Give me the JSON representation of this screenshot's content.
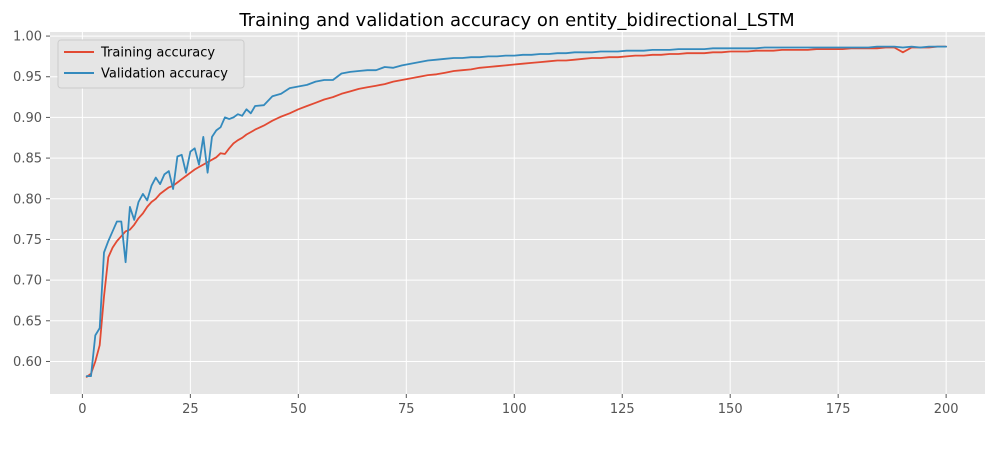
{
  "chart_data": {
    "type": "line",
    "title": "Training and validation accuracy on entity_bidirectional_LSTM",
    "xlabel": "",
    "ylabel": "",
    "xlim": [
      -7.5,
      209
    ],
    "ylim": [
      0.56,
      1.005
    ],
    "xticks": [
      0,
      25,
      50,
      75,
      100,
      125,
      150,
      175,
      200
    ],
    "yticks": [
      0.6,
      0.65,
      0.7,
      0.75,
      0.8,
      0.85,
      0.9,
      0.95,
      1.0
    ],
    "xtick_labels": [
      "0",
      "25",
      "50",
      "75",
      "100",
      "125",
      "150",
      "175",
      "200"
    ],
    "ytick_labels": [
      "0.60",
      "0.65",
      "0.70",
      "0.75",
      "0.80",
      "0.85",
      "0.90",
      "0.95",
      "1.00"
    ],
    "grid": true,
    "legend_position": "top-left",
    "series": [
      {
        "name": "Training accuracy",
        "color": "#e24a33",
        "x": [
          1,
          2,
          3,
          4,
          5,
          6,
          7,
          8,
          9,
          10,
          11,
          12,
          13,
          14,
          15,
          16,
          17,
          18,
          19,
          20,
          21,
          22,
          23,
          24,
          25,
          26,
          27,
          28,
          29,
          30,
          31,
          32,
          33,
          34,
          35,
          36,
          37,
          38,
          39,
          40,
          42,
          44,
          46,
          48,
          50,
          52,
          54,
          56,
          58,
          60,
          62,
          64,
          66,
          68,
          70,
          72,
          74,
          76,
          78,
          80,
          82,
          84,
          86,
          88,
          90,
          92,
          94,
          96,
          98,
          100,
          102,
          104,
          106,
          108,
          110,
          112,
          114,
          116,
          118,
          120,
          122,
          124,
          126,
          128,
          130,
          132,
          134,
          136,
          138,
          140,
          142,
          144,
          146,
          148,
          150,
          152,
          154,
          156,
          158,
          160,
          162,
          164,
          166,
          168,
          170,
          172,
          174,
          176,
          178,
          180,
          182,
          184,
          186,
          188,
          190,
          192,
          194,
          196,
          198,
          200
        ],
        "values": [
          0.581,
          0.585,
          0.6,
          0.62,
          0.68,
          0.728,
          0.74,
          0.748,
          0.754,
          0.76,
          0.762,
          0.768,
          0.776,
          0.782,
          0.79,
          0.796,
          0.8,
          0.806,
          0.81,
          0.814,
          0.816,
          0.82,
          0.824,
          0.828,
          0.832,
          0.836,
          0.839,
          0.842,
          0.845,
          0.848,
          0.851,
          0.856,
          0.855,
          0.862,
          0.868,
          0.872,
          0.875,
          0.879,
          0.882,
          0.885,
          0.89,
          0.896,
          0.901,
          0.905,
          0.91,
          0.914,
          0.918,
          0.922,
          0.925,
          0.929,
          0.932,
          0.935,
          0.937,
          0.939,
          0.941,
          0.944,
          0.946,
          0.948,
          0.95,
          0.952,
          0.953,
          0.955,
          0.957,
          0.958,
          0.959,
          0.961,
          0.962,
          0.963,
          0.964,
          0.965,
          0.966,
          0.967,
          0.968,
          0.969,
          0.97,
          0.97,
          0.971,
          0.972,
          0.973,
          0.973,
          0.974,
          0.974,
          0.975,
          0.976,
          0.976,
          0.977,
          0.977,
          0.978,
          0.978,
          0.979,
          0.979,
          0.979,
          0.98,
          0.98,
          0.981,
          0.981,
          0.981,
          0.982,
          0.982,
          0.982,
          0.983,
          0.983,
          0.983,
          0.983,
          0.984,
          0.984,
          0.984,
          0.984,
          0.985,
          0.985,
          0.985,
          0.985,
          0.986,
          0.986,
          0.98,
          0.986,
          0.986,
          0.986,
          0.987,
          0.987
        ]
      },
      {
        "name": "Validation accuracy",
        "color": "#348abd",
        "x": [
          1,
          2,
          3,
          4,
          5,
          6,
          7,
          8,
          9,
          10,
          11,
          12,
          13,
          14,
          15,
          16,
          17,
          18,
          19,
          20,
          21,
          22,
          23,
          24,
          25,
          26,
          27,
          28,
          29,
          30,
          31,
          32,
          33,
          34,
          35,
          36,
          37,
          38,
          39,
          40,
          42,
          44,
          46,
          48,
          50,
          52,
          54,
          56,
          58,
          60,
          62,
          64,
          66,
          68,
          70,
          72,
          74,
          76,
          78,
          80,
          82,
          84,
          86,
          88,
          90,
          92,
          94,
          96,
          98,
          100,
          102,
          104,
          106,
          108,
          110,
          112,
          114,
          116,
          118,
          120,
          122,
          124,
          126,
          128,
          130,
          132,
          134,
          136,
          138,
          140,
          142,
          144,
          146,
          148,
          150,
          152,
          154,
          156,
          158,
          160,
          162,
          164,
          166,
          168,
          170,
          172,
          174,
          176,
          178,
          180,
          182,
          184,
          186,
          188,
          190,
          192,
          194,
          196,
          198,
          200
        ],
        "values": [
          0.582,
          0.582,
          0.632,
          0.641,
          0.734,
          0.748,
          0.76,
          0.772,
          0.772,
          0.722,
          0.79,
          0.774,
          0.796,
          0.806,
          0.798,
          0.816,
          0.826,
          0.818,
          0.83,
          0.834,
          0.812,
          0.852,
          0.854,
          0.832,
          0.858,
          0.862,
          0.842,
          0.876,
          0.832,
          0.876,
          0.884,
          0.888,
          0.9,
          0.898,
          0.9,
          0.904,
          0.902,
          0.91,
          0.905,
          0.914,
          0.915,
          0.926,
          0.929,
          0.936,
          0.938,
          0.94,
          0.944,
          0.946,
          0.946,
          0.954,
          0.956,
          0.957,
          0.958,
          0.958,
          0.962,
          0.961,
          0.964,
          0.966,
          0.968,
          0.97,
          0.971,
          0.972,
          0.973,
          0.973,
          0.974,
          0.974,
          0.975,
          0.975,
          0.976,
          0.976,
          0.977,
          0.977,
          0.978,
          0.978,
          0.979,
          0.979,
          0.98,
          0.98,
          0.98,
          0.981,
          0.981,
          0.981,
          0.982,
          0.982,
          0.982,
          0.983,
          0.983,
          0.983,
          0.984,
          0.984,
          0.984,
          0.984,
          0.985,
          0.985,
          0.985,
          0.985,
          0.985,
          0.985,
          0.986,
          0.986,
          0.986,
          0.986,
          0.986,
          0.986,
          0.986,
          0.986,
          0.986,
          0.986,
          0.986,
          0.986,
          0.986,
          0.987,
          0.987,
          0.987,
          0.986,
          0.987,
          0.986,
          0.987,
          0.987,
          0.987
        ]
      }
    ]
  }
}
